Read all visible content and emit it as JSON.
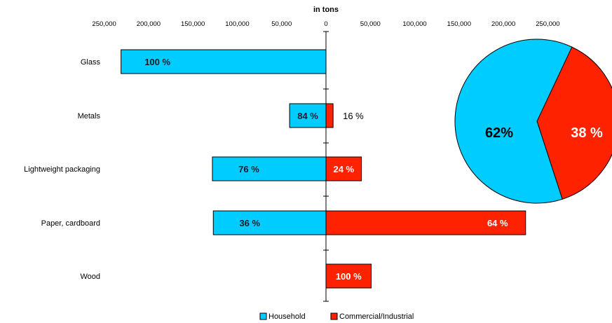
{
  "chart_data": [
    {
      "type": "bar",
      "orientation": "horizontal",
      "layout": "diverging",
      "axis_title": "in tons",
      "xlim": [
        -250000,
        250000
      ],
      "ticks": [
        {
          "value": -250000,
          "label": "250,000"
        },
        {
          "value": -200000,
          "label": "200,000"
        },
        {
          "value": -150000,
          "label": "150,000"
        },
        {
          "value": -100000,
          "label": "100,000"
        },
        {
          "value": -50000,
          "label": "50,000"
        },
        {
          "value": 0,
          "label": "0"
        },
        {
          "value": 50000,
          "label": "50,000"
        },
        {
          "value": 100000,
          "label": "100,000"
        },
        {
          "value": 150000,
          "label": "150,000"
        },
        {
          "value": 200000,
          "label": "200,000"
        },
        {
          "value": 250000,
          "label": "250,000"
        }
      ],
      "categories": [
        "Glass",
        "Metals",
        "Lightweight packaging",
        "Paper, cardboard",
        "Wood"
      ],
      "series": [
        {
          "name": "Household",
          "color": "#00ccff",
          "direction": "left",
          "values": [
            231000,
            41000,
            128000,
            127000,
            0
          ],
          "labels": [
            "100 %",
            "84 %",
            "76 %",
            "36 %",
            ""
          ],
          "label_style": "dark"
        },
        {
          "name": "Commercial/Industrial",
          "color": "#ff2200",
          "direction": "right",
          "values": [
            0,
            8000,
            40000,
            225000,
            51000
          ],
          "labels": [
            "",
            "16 %",
            "24 %",
            "64 %",
            "100 %"
          ],
          "label_style": "light"
        }
      ],
      "legend": {
        "placement": "bottom-center",
        "items": [
          "Household",
          "Commercial/Industrial"
        ]
      },
      "grid": false
    },
    {
      "type": "pie",
      "slices": [
        {
          "name": "Household",
          "value": 62,
          "label": "62%",
          "color": "#00ccff"
        },
        {
          "name": "Commercial/Industrial",
          "value": 38,
          "label": "38 %",
          "color": "#ff2200"
        }
      ]
    }
  ]
}
